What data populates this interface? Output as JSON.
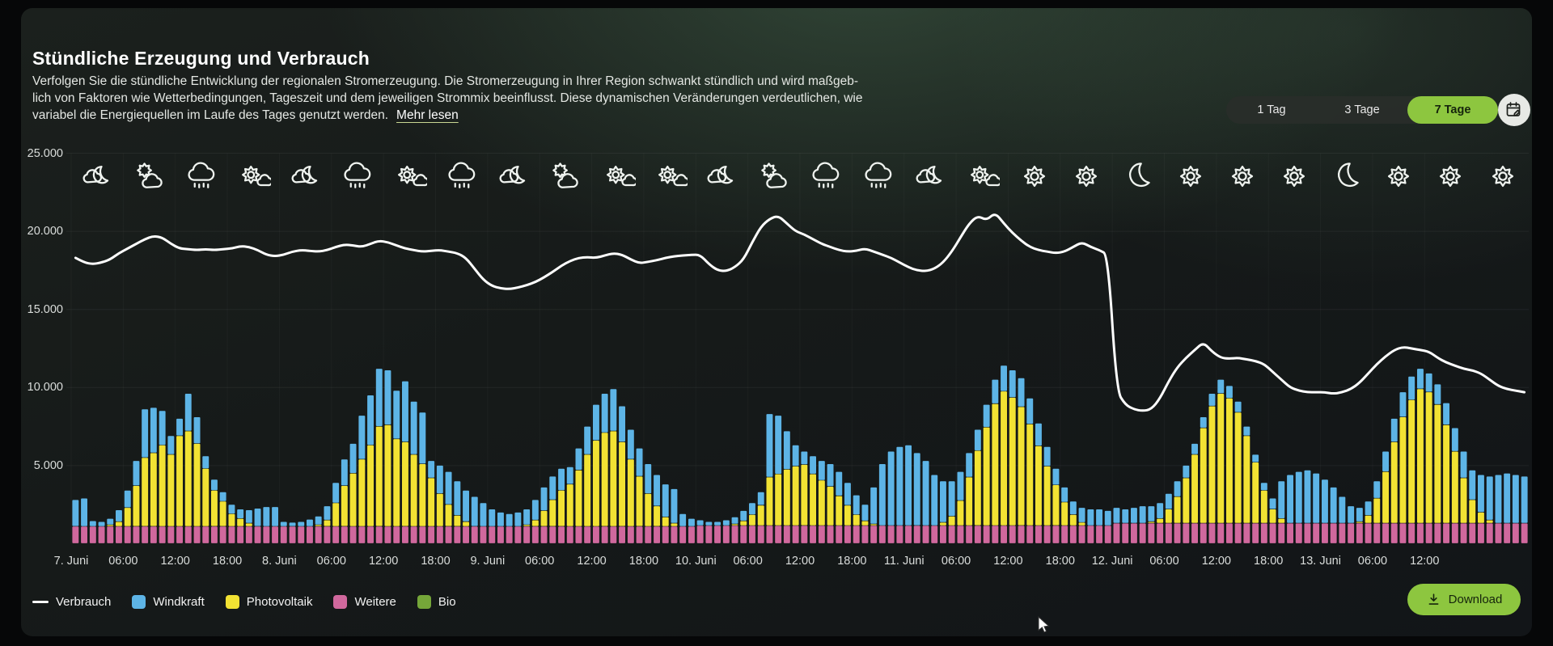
{
  "header": {
    "title": "Stündliche Erzeugung und Verbrauch",
    "description_lines": [
      "Verfolgen Sie die stündliche Entwicklung der regionalen Stromerzeugung. Die Stromerzeugung in Ihrer Region schwankt stündlich und wird maßgeb-",
      "lich von Faktoren wie Wetterbedingungen, Tageszeit und dem jeweiligen Strommix beeinflusst. Diese dynamischen Veränderungen verdeutlichen, wie",
      "variabel die Energiequellen im Laufe des Tages genutzt werden."
    ],
    "read_more": "Mehr lesen"
  },
  "controls": {
    "range_buttons": [
      {
        "label": "1 Tag",
        "active": false
      },
      {
        "label": "3 Tage",
        "active": false
      },
      {
        "label": "7 Tage",
        "active": true
      }
    ],
    "calendar_button_icon": "calendar-edit",
    "download_label": "Download",
    "accent_green": "#8dc63f"
  },
  "legend": [
    {
      "label": "Verbrauch",
      "marker": "line",
      "color": "#ffffff"
    },
    {
      "label": "Windkraft",
      "marker": "square",
      "color": "#5db4e6"
    },
    {
      "label": "Photovoltaik",
      "marker": "square",
      "color": "#f2e233"
    },
    {
      "label": "Weitere",
      "marker": "square",
      "color": "#d0689d"
    },
    {
      "label": "Bio",
      "marker": "square",
      "color": "#75a639"
    }
  ],
  "weather_icons": [
    "cloud-moon",
    "sun-behind-cloud",
    "rain",
    "sun-cloud",
    "cloud-moon",
    "rain",
    "sun-cloud",
    "rain",
    "cloud-moon",
    "sun-behind-cloud",
    "sun-cloud",
    "sun-cloud",
    "cloud-moon",
    "sun-behind-cloud",
    "rain",
    "rain",
    "cloud-moon",
    "sun-cloud",
    "sun",
    "sun",
    "moon",
    "sun",
    "sun",
    "sun",
    "moon",
    "sun",
    "sun",
    "sun"
  ],
  "chart_data": {
    "type": "stacked-bar+line",
    "x_unit": "hour",
    "x_range_days": [
      "7. Juni",
      "13. Juni"
    ],
    "x_tick_labels": [
      "7. Juni",
      "06:00",
      "12:00",
      "18:00",
      "8. Juni",
      "06:00",
      "12:00",
      "18:00",
      "9. Juni",
      "06:00",
      "12:00",
      "18:00",
      "10. Juni",
      "06:00",
      "12:00",
      "18:00",
      "11. Juni",
      "06:00",
      "12:00",
      "18:00",
      "12. Juni",
      "06:00",
      "12:00",
      "18:00",
      "13. Juni",
      "06:00",
      "12:00"
    ],
    "y_ticks": [
      {
        "value": 5000,
        "label": "5.000"
      },
      {
        "value": 10000,
        "label": "10.000"
      },
      {
        "value": 15000,
        "label": "15.000"
      },
      {
        "value": 20000,
        "label": "20.000"
      },
      {
        "value": 25000,
        "label": "25.000"
      }
    ],
    "ylim": [
      0,
      25000
    ],
    "grid": "faint",
    "legend_position": "bottom-left",
    "stack_order": [
      "Weitere",
      "Photovoltaik",
      "Windkraft",
      "Bio"
    ],
    "series": [
      {
        "name": "Verbrauch",
        "type": "line",
        "color": "#ffffff",
        "values": [
          18300,
          18000,
          17900,
          18000,
          18200,
          18600,
          18900,
          19200,
          19500,
          19700,
          19600,
          19200,
          18900,
          18850,
          18800,
          18850,
          18800,
          18850,
          18900,
          19050,
          19000,
          18800,
          18500,
          18400,
          18500,
          18700,
          18800,
          18750,
          18700,
          18800,
          19000,
          19150,
          19100,
          19000,
          19200,
          19400,
          19300,
          19100,
          18900,
          18800,
          18700,
          18750,
          18800,
          18700,
          18600,
          18300,
          17600,
          16900,
          16500,
          16350,
          16300,
          16400,
          16550,
          16750,
          17050,
          17400,
          17800,
          18100,
          18300,
          18350,
          18300,
          18450,
          18600,
          18500,
          18200,
          17950,
          18050,
          18150,
          18300,
          18400,
          18450,
          18500,
          18500,
          17900,
          17500,
          17450,
          17700,
          18200,
          19300,
          20300,
          20800,
          21000,
          20500,
          20000,
          19800,
          19500,
          19200,
          19000,
          18800,
          18700,
          18750,
          18900,
          18700,
          18500,
          18300,
          18000,
          17700,
          17500,
          17450,
          17600,
          18000,
          18700,
          19600,
          20500,
          21000,
          20700,
          21200,
          20500,
          19900,
          19400,
          19000,
          18800,
          18700,
          18600,
          18700,
          19000,
          19300,
          19000,
          18800,
          18500,
          9800,
          8900,
          8600,
          8500,
          8600,
          9300,
          10400,
          11300,
          11900,
          12400,
          12900,
          12300,
          11900,
          11850,
          11900,
          11800,
          11700,
          11500,
          11000,
          10500,
          10000,
          9800,
          9700,
          9700,
          9700,
          9600,
          9700,
          9900,
          10300,
          10900,
          11500,
          12000,
          12400,
          12600,
          12500,
          12400,
          12300,
          11900,
          11600,
          11400,
          11200,
          11100,
          10900,
          10500,
          10100,
          9900,
          9800,
          9700
        ]
      },
      {
        "name": "Windkraft",
        "type": "bar",
        "color": "#5db4e6",
        "values": [
          1700,
          1800,
          350,
          300,
          400,
          750,
          1100,
          1600,
          3100,
          2900,
          2200,
          1200,
          1100,
          2400,
          1700,
          800,
          700,
          600,
          600,
          600,
          850,
          1150,
          1250,
          1250,
          300,
          250,
          300,
          450,
          550,
          900,
          1300,
          1700,
          1900,
          2800,
          3200,
          3700,
          3500,
          3100,
          3900,
          3400,
          3300,
          1100,
          1800,
          2100,
          2200,
          2000,
          1900,
          1500,
          1100,
          900,
          800,
          900,
          1000,
          1300,
          1500,
          1500,
          1400,
          1100,
          1400,
          1800,
          2300,
          2500,
          2700,
          2300,
          1900,
          1800,
          1900,
          2000,
          2100,
          2200,
          800,
          500,
          350,
          250,
          250,
          350,
          450,
          650,
          750,
          850,
          4050,
          3750,
          2450,
          1350,
          850,
          1150,
          1250,
          1450,
          1550,
          1450,
          1250,
          1050,
          2350,
          3950,
          4750,
          5050,
          5150,
          4650,
          4150,
          3250,
          2650,
          2250,
          1850,
          1550,
          1350,
          1450,
          1550,
          1650,
          1750,
          1850,
          1650,
          1450,
          1250,
          1050,
          950,
          850,
          950,
          1050,
          1050,
          950,
          1000,
          900,
          1000,
          1100,
          1000,
          1000,
          1000,
          1000,
          800,
          700,
          700,
          800,
          900,
          800,
          700,
          600,
          500,
          500,
          700,
          2400,
          3100,
          3300,
          3400,
          3200,
          2800,
          2300,
          1700,
          1100,
          900,
          900,
          1100,
          1300,
          1500,
          1600,
          1500,
          1300,
          1200,
          1300,
          1400,
          1500,
          1700,
          1900,
          2400,
          2800,
          3100,
          3200,
          3100,
          3000
        ]
      },
      {
        "name": "Photovoltaik",
        "type": "bar",
        "color": "#f2e233",
        "values": [
          0,
          0,
          0,
          0,
          100,
          300,
          1200,
          2600,
          4400,
          4700,
          5200,
          4600,
          5800,
          6100,
          5300,
          3700,
          2300,
          1600,
          800,
          500,
          200,
          0,
          0,
          0,
          0,
          0,
          0,
          0,
          100,
          400,
          1500,
          2600,
          3400,
          4300,
          5200,
          6400,
          6500,
          5600,
          5400,
          4600,
          4000,
          3100,
          2100,
          1400,
          700,
          300,
          0,
          0,
          0,
          0,
          0,
          0,
          100,
          400,
          1000,
          1700,
          2300,
          2700,
          3600,
          4600,
          5500,
          6000,
          6100,
          5400,
          4300,
          3200,
          2100,
          1300,
          600,
          200,
          0,
          0,
          0,
          0,
          0,
          0,
          100,
          300,
          700,
          1300,
          3100,
          3300,
          3600,
          3800,
          3900,
          3300,
          2900,
          2500,
          1900,
          1300,
          700,
          300,
          100,
          0,
          0,
          0,
          0,
          0,
          0,
          0,
          200,
          600,
          1600,
          3100,
          4800,
          6300,
          7800,
          8600,
          8200,
          7600,
          6500,
          5100,
          3800,
          2600,
          1500,
          700,
          200,
          0,
          0,
          0,
          0,
          0,
          0,
          0,
          100,
          300,
          900,
          1700,
          2900,
          4400,
          6100,
          7500,
          8300,
          8000,
          7100,
          5600,
          3900,
          2100,
          900,
          300,
          0,
          0,
          0,
          0,
          0,
          0,
          0,
          0,
          100,
          500,
          1600,
          3300,
          5200,
          6800,
          7900,
          8600,
          8400,
          7600,
          6300,
          4600,
          2900,
          1500,
          700,
          200,
          0,
          0,
          0,
          0
        ]
      },
      {
        "name": "Weitere",
        "type": "bar",
        "color": "#d0689d",
        "values": [
          1100,
          1100,
          1100,
          1100,
          1100,
          1100,
          1100,
          1100,
          1100,
          1100,
          1100,
          1100,
          1100,
          1100,
          1100,
          1100,
          1100,
          1100,
          1100,
          1100,
          1100,
          1100,
          1100,
          1100,
          1100,
          1100,
          1100,
          1100,
          1100,
          1100,
          1100,
          1100,
          1100,
          1100,
          1100,
          1100,
          1100,
          1100,
          1100,
          1100,
          1100,
          1100,
          1100,
          1100,
          1100,
          1100,
          1100,
          1100,
          1100,
          1100,
          1100,
          1100,
          1100,
          1100,
          1100,
          1100,
          1100,
          1100,
          1100,
          1100,
          1100,
          1100,
          1100,
          1100,
          1100,
          1100,
          1100,
          1100,
          1100,
          1100,
          1100,
          1100,
          1150,
          1150,
          1150,
          1150,
          1150,
          1150,
          1150,
          1150,
          1150,
          1150,
          1150,
          1150,
          1150,
          1150,
          1150,
          1150,
          1150,
          1150,
          1150,
          1150,
          1150,
          1150,
          1150,
          1150,
          1150,
          1150,
          1150,
          1150,
          1150,
          1150,
          1150,
          1150,
          1150,
          1150,
          1150,
          1150,
          1150,
          1150,
          1150,
          1150,
          1150,
          1150,
          1150,
          1150,
          1150,
          1150,
          1150,
          1150,
          1300,
          1300,
          1300,
          1300,
          1300,
          1300,
          1300,
          1300,
          1300,
          1300,
          1300,
          1300,
          1300,
          1300,
          1300,
          1300,
          1300,
          1300,
          1300,
          1300,
          1300,
          1300,
          1300,
          1300,
          1300,
          1300,
          1300,
          1300,
          1300,
          1300,
          1300,
          1300,
          1300,
          1300,
          1300,
          1300,
          1300,
          1300,
          1300,
          1300,
          1300,
          1300,
          1300,
          1300,
          1300,
          1300,
          1300,
          1300
        ]
      },
      {
        "name": "Bio",
        "type": "bar",
        "color": "#75a639",
        "values": [
          0,
          0,
          0,
          0,
          0,
          0,
          0,
          0,
          0,
          0,
          0,
          0,
          0,
          0,
          0,
          0,
          0,
          0,
          0,
          0,
          0,
          0,
          0,
          0,
          0,
          0,
          0,
          0,
          0,
          0,
          0,
          0,
          0,
          0,
          0,
          0,
          0,
          0,
          0,
          0,
          0,
          0,
          0,
          0,
          0,
          0,
          0,
          0,
          0,
          0,
          0,
          0,
          0,
          0,
          0,
          0,
          0,
          0,
          0,
          0,
          0,
          0,
          0,
          0,
          0,
          0,
          0,
          0,
          0,
          0,
          0,
          0,
          0,
          0,
          0,
          0,
          0,
          0,
          0,
          0,
          0,
          0,
          0,
          0,
          0,
          0,
          0,
          0,
          0,
          0,
          0,
          0,
          0,
          0,
          0,
          0,
          0,
          0,
          0,
          0,
          0,
          0,
          0,
          0,
          0,
          0,
          0,
          0,
          0,
          0,
          0,
          0,
          0,
          0,
          0,
          0,
          0,
          0,
          0,
          0,
          0,
          0,
          0,
          0,
          0,
          0,
          0,
          0,
          0,
          0,
          0,
          0,
          0,
          0,
          0,
          0,
          0,
          0,
          0,
          0,
          0,
          0,
          0,
          0,
          0,
          0,
          0,
          0,
          0,
          0,
          0,
          0,
          0,
          0,
          0,
          0,
          0,
          0,
          0,
          0,
          0,
          0,
          0,
          0,
          0,
          0,
          0,
          0
        ]
      }
    ]
  }
}
